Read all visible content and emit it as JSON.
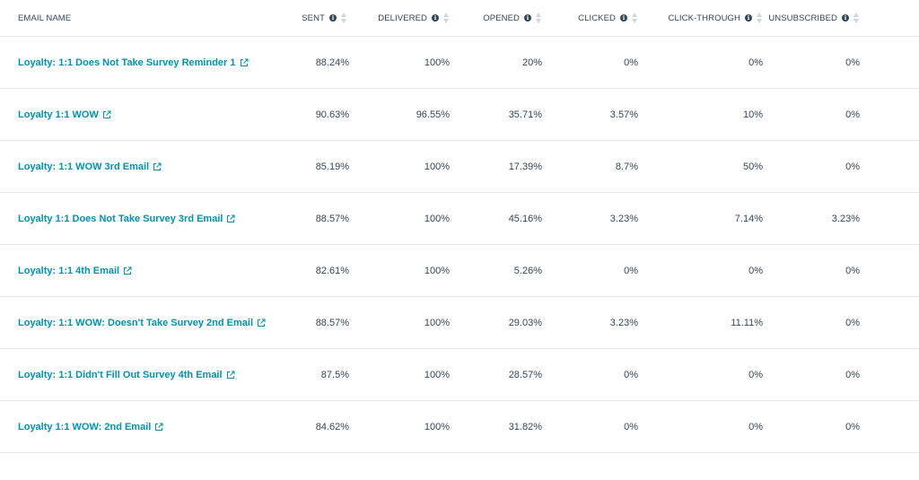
{
  "headers": {
    "email_name": "EMAIL NAME",
    "sent": "SENT",
    "delivered": "DELIVERED",
    "opened": "OPENED",
    "clicked": "CLICKED",
    "click_through": "CLICK-THROUGH",
    "unsubscribed": "UNSUBSCRIBED",
    "info_glyph": "i"
  },
  "rows": [
    {
      "name": "Loyalty: 1:1 Does Not Take Survey Reminder 1",
      "sent": "88.24%",
      "delivered": "100%",
      "opened": "20%",
      "clicked": "0%",
      "click_through": "0%",
      "unsubscribed": "0%"
    },
    {
      "name": "Loyalty 1:1 WOW",
      "sent": "90.63%",
      "delivered": "96.55%",
      "opened": "35.71%",
      "clicked": "3.57%",
      "click_through": "10%",
      "unsubscribed": "0%"
    },
    {
      "name": "Loyalty: 1:1 WOW 3rd Email",
      "sent": "85.19%",
      "delivered": "100%",
      "opened": "17.39%",
      "clicked": "8.7%",
      "click_through": "50%",
      "unsubscribed": "0%"
    },
    {
      "name": "Loyalty 1:1 Does Not Take Survey 3rd Email",
      "sent": "88.57%",
      "delivered": "100%",
      "opened": "45.16%",
      "clicked": "3.23%",
      "click_through": "7.14%",
      "unsubscribed": "3.23%"
    },
    {
      "name": "Loyalty: 1:1 4th Email",
      "sent": "82.61%",
      "delivered": "100%",
      "opened": "5.26%",
      "clicked": "0%",
      "click_through": "0%",
      "unsubscribed": "0%"
    },
    {
      "name": "Loyalty: 1:1 WOW: Doesn't Take Survey 2nd Email",
      "sent": "88.57%",
      "delivered": "100%",
      "opened": "29.03%",
      "clicked": "3.23%",
      "click_through": "11.11%",
      "unsubscribed": "0%"
    },
    {
      "name": "Loyalty: 1:1 Didn't Fill Out Survey 4th Email",
      "sent": "87.5%",
      "delivered": "100%",
      "opened": "28.57%",
      "clicked": "0%",
      "click_through": "0%",
      "unsubscribed": "0%"
    },
    {
      "name": "Loyalty 1:1 WOW: 2nd Email",
      "sent": "84.62%",
      "delivered": "100%",
      "opened": "31.82%",
      "clicked": "0%",
      "click_through": "0%",
      "unsubscribed": "0%"
    }
  ],
  "colors": {
    "link": "#0091ae",
    "text": "#33475b",
    "divider": "#e5e8eb",
    "sort_arrow": "#cbd6e2"
  },
  "icons": {
    "info": "info-icon",
    "sort": "sort-arrows-icon",
    "external_link": "external-link-icon"
  }
}
